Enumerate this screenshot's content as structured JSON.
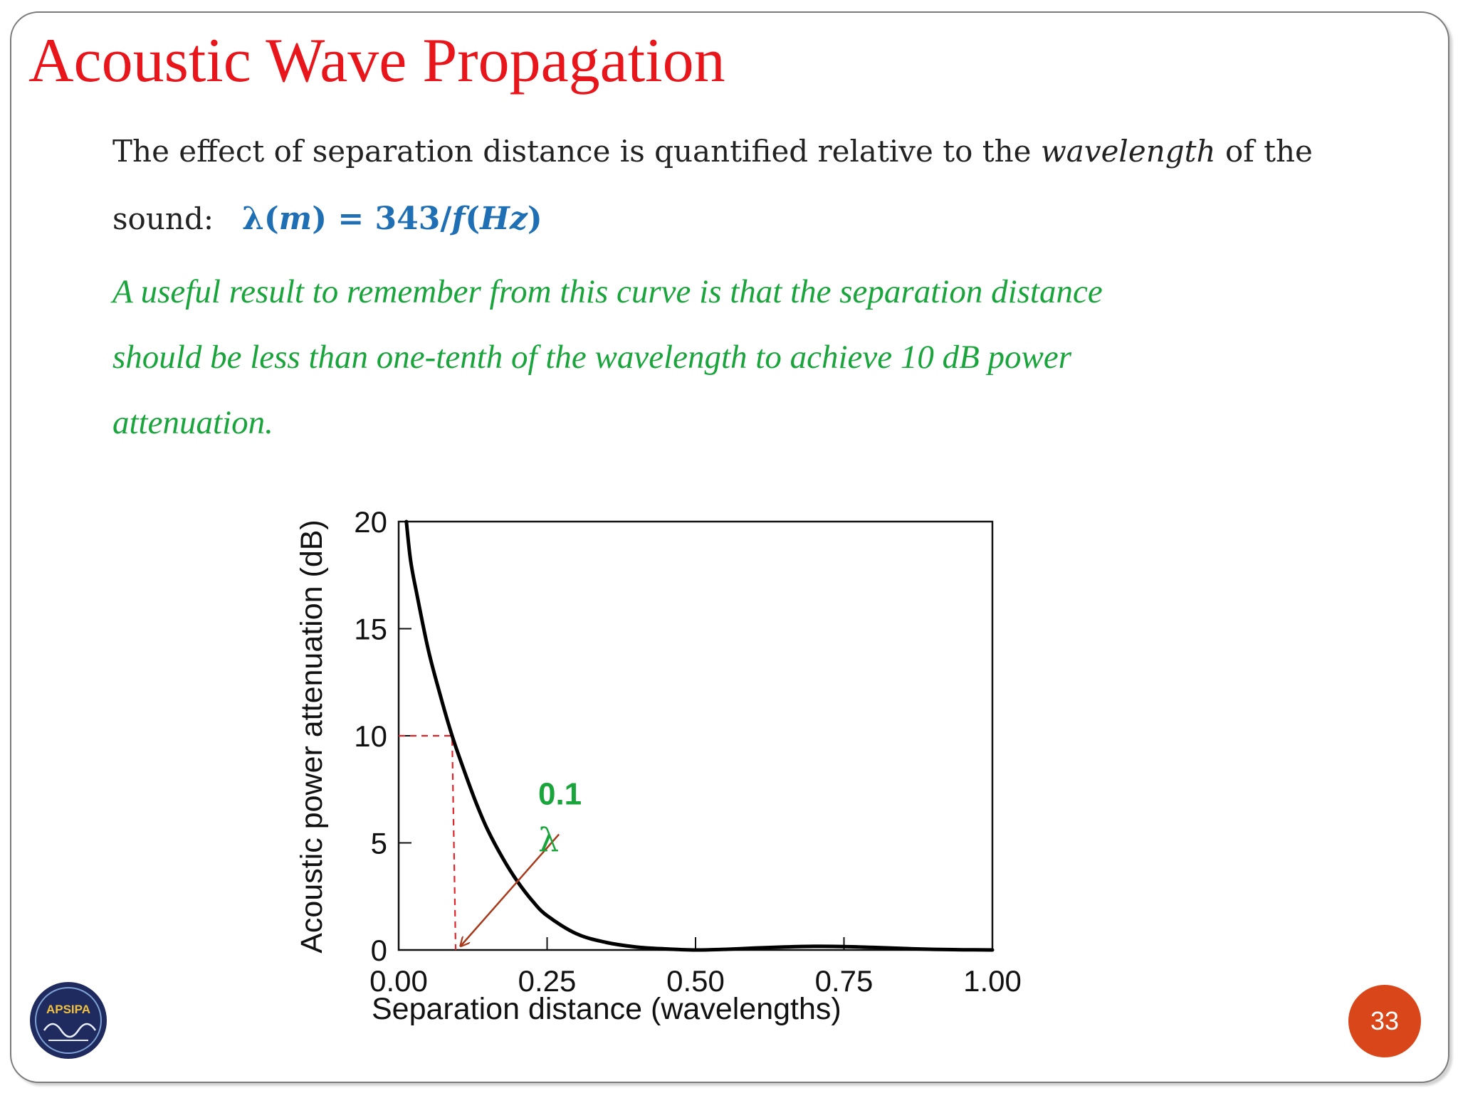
{
  "slide": {
    "title": "Acoustic Wave Propagation",
    "intro_text_1": "The effect of separation distance is quantified relative to the ",
    "intro_italic": "wavelength",
    "intro_text_2": " of the",
    "intro_line2_label": "sound:",
    "formula": {
      "lambda": "λ",
      "open": "(",
      "m": "m",
      "close_eq": ") = 343/",
      "f": "f",
      "open2": "(",
      "hz": "Hz",
      "close2": ")"
    },
    "note_lines": [
      "A useful result to remember from this curve is that the separation distance",
      "should be less than one-tenth of the wavelength to achieve 10 dB power",
      "attenuation."
    ],
    "page_number": "33",
    "logo_text": "APSIPA",
    "colors": {
      "title": "#e8151b",
      "formula": "#1f6fb5",
      "note": "#1aa53c",
      "annotation_arrow": "#a83a1c",
      "dashed_guide": "#e0242a",
      "badge": "#d9461a"
    }
  },
  "chart_data": {
    "type": "line",
    "title": "",
    "xlabel": "Separation distance (wavelengths)",
    "ylabel": "Acoustic power attenuation (dB)",
    "xlim": [
      0,
      1.0
    ],
    "ylim": [
      0,
      20
    ],
    "x_ticks": [
      "0.00",
      "0.25",
      "0.50",
      "0.75",
      "1.00"
    ],
    "y_ticks": [
      "0",
      "5",
      "10",
      "15",
      "20"
    ],
    "grid": false,
    "series": [
      {
        "x": [
          0.013,
          0.02,
          0.03,
          0.05,
          0.07,
          0.09,
          0.11,
          0.13,
          0.15,
          0.175,
          0.2,
          0.225,
          0.25,
          0.3,
          0.35,
          0.4,
          0.45,
          0.5,
          0.55,
          0.6,
          0.65,
          0.7,
          0.75,
          0.8,
          0.85,
          0.9,
          0.95,
          1.0
        ],
        "y": [
          20.0,
          18.2,
          16.7,
          14.0,
          11.9,
          10.0,
          8.4,
          6.9,
          5.6,
          4.3,
          3.2,
          2.3,
          1.6,
          0.75,
          0.35,
          0.14,
          0.05,
          0.0,
          0.03,
          0.09,
          0.14,
          0.17,
          0.16,
          0.12,
          0.07,
          0.03,
          0.01,
          0.0
        ]
      }
    ],
    "annotations": {
      "guide_point": {
        "x": 0.09,
        "y": 10
      },
      "label_value": "0.1",
      "label_symbol": "λ",
      "arrow_from": {
        "x": 0.27,
        "y": 5.4
      },
      "arrow_to": {
        "x": 0.1,
        "y": 0
      }
    }
  }
}
